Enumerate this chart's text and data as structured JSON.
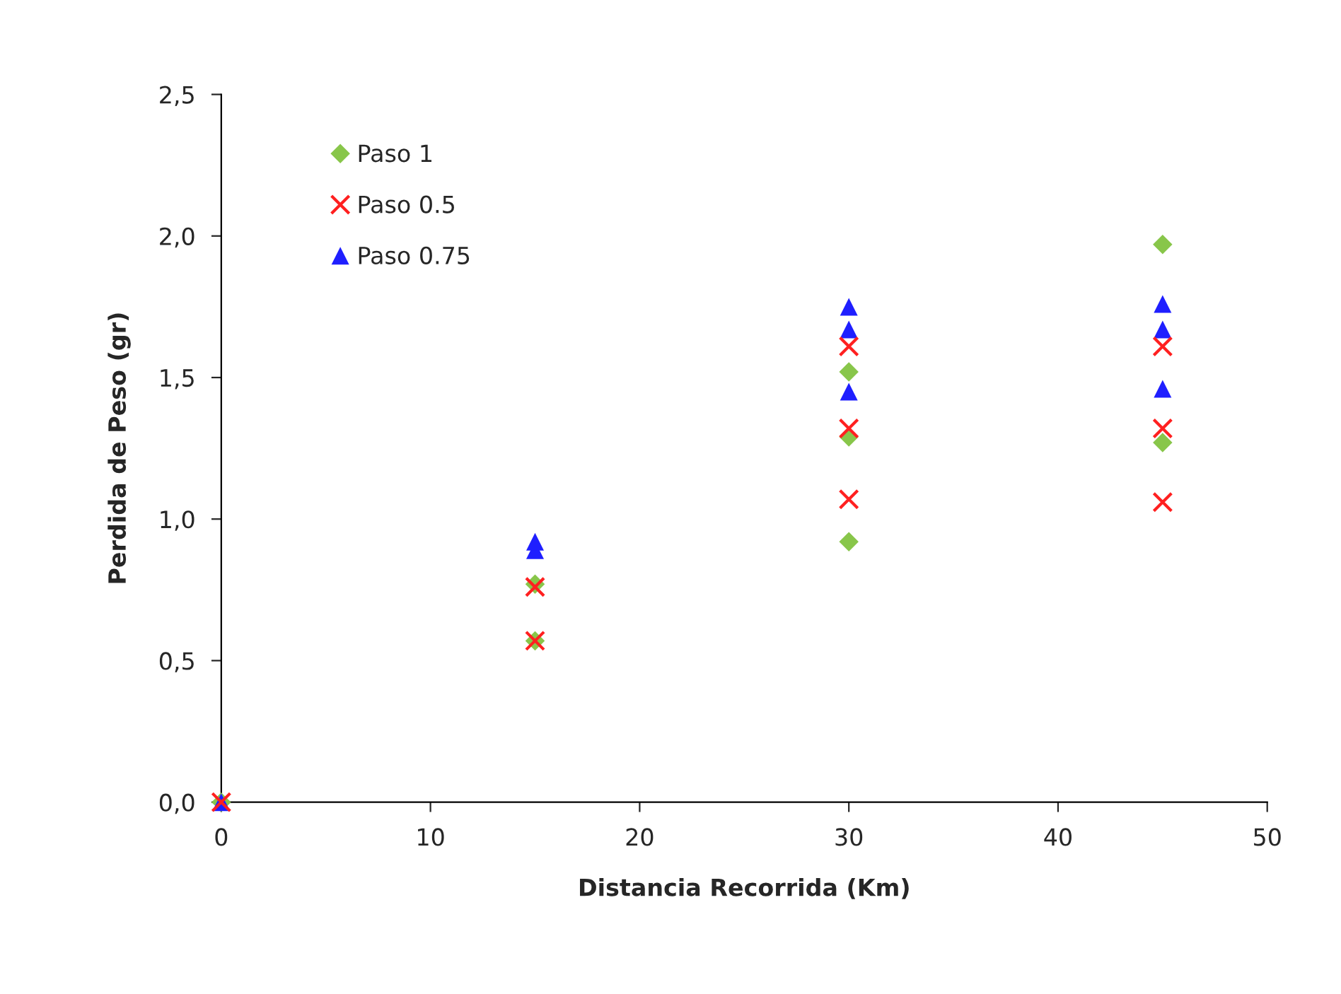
{
  "chart_data": {
    "type": "scatter",
    "xlabel": "Distancia Recorrida (Km)",
    "ylabel": "Perdida de Peso (gr)",
    "xlim": [
      0,
      50
    ],
    "xticks": [
      0,
      10,
      20,
      30,
      40,
      50
    ],
    "ylim": [
      0,
      2.5
    ],
    "yticks": [
      {
        "value": 0,
        "label": "0,0"
      },
      {
        "value": 0.5,
        "label": "0,5"
      },
      {
        "value": 1.0,
        "label": "1,0"
      },
      {
        "value": 1.5,
        "label": "1,5"
      },
      {
        "value": 2.0,
        "label": "2,0"
      },
      {
        "value": 2.5,
        "label": "2,5"
      }
    ],
    "grid": false,
    "legend": "top left",
    "series": [
      {
        "name": "Paso 1",
        "color": "#88c64a",
        "marker": "diamond",
        "x": [
          0,
          15,
          15,
          30,
          30,
          30,
          45,
          45
        ],
        "values": [
          0,
          0.57,
          0.77,
          0.92,
          1.29,
          1.52,
          1.27,
          1.97
        ]
      },
      {
        "name": "Paso 0.5",
        "color": "#ff2020",
        "marker": "cross",
        "x": [
          0,
          15,
          15,
          30,
          30,
          30,
          45,
          45,
          45
        ],
        "values": [
          0,
          0.57,
          0.76,
          1.07,
          1.32,
          1.61,
          1.06,
          1.32,
          1.61
        ]
      },
      {
        "name": "Paso 0.75",
        "color": "#1f1fff",
        "marker": "triangle",
        "x": [
          0,
          15,
          15,
          30,
          30,
          30,
          45,
          45,
          45
        ],
        "values": [
          0,
          0.89,
          0.92,
          1.45,
          1.67,
          1.75,
          1.46,
          1.67,
          1.76
        ]
      }
    ]
  }
}
